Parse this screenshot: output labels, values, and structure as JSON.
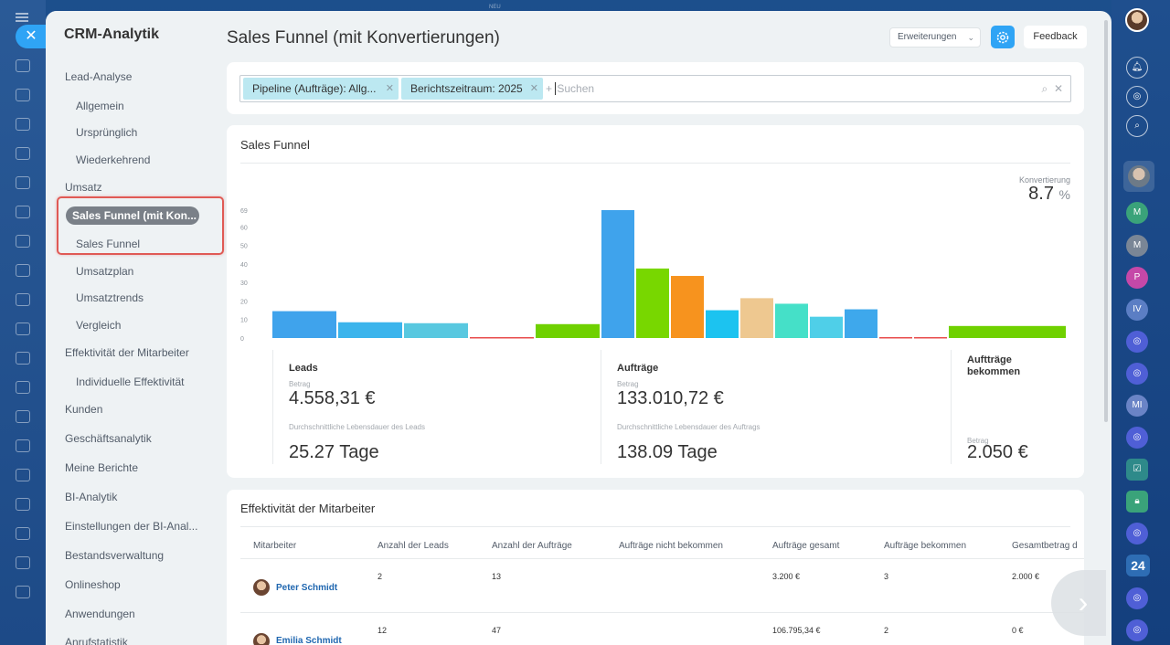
{
  "window": {
    "tag": "NEU"
  },
  "sidebar": {
    "title": "CRM-Analytik",
    "items": [
      {
        "label": "Lead-Analyse",
        "level": 0
      },
      {
        "label": "Allgemein",
        "level": 1
      },
      {
        "label": "Ursprünglich",
        "level": 1
      },
      {
        "label": "Wiederkehrend",
        "level": 1
      },
      {
        "label": "Umsatz",
        "level": 0
      },
      {
        "label": "Sales Funnel (mit Kon...",
        "level": 1,
        "active": true
      },
      {
        "label": "Sales Funnel",
        "level": 1
      },
      {
        "label": "Umsatzplan",
        "level": 1
      },
      {
        "label": "Umsatztrends",
        "level": 1
      },
      {
        "label": "Vergleich",
        "level": 1
      },
      {
        "label": "Effektivität der Mitarbeiter",
        "level": 0
      },
      {
        "label": "Individuelle Effektivität",
        "level": 1
      },
      {
        "label": "Kunden",
        "level": 0
      },
      {
        "label": "Geschäftsanalytik",
        "level": 0
      },
      {
        "label": "Meine Berichte",
        "level": 0
      },
      {
        "label": "BI-Analytik",
        "level": 0
      },
      {
        "label": "Einstellungen der BI-Anal...",
        "level": 0
      },
      {
        "label": "Bestandsverwaltung",
        "level": 0
      },
      {
        "label": "Onlineshop",
        "level": 0
      },
      {
        "label": "Anwendungen",
        "level": 0
      },
      {
        "label": "Anrufstatistik",
        "level": 0
      }
    ]
  },
  "header": {
    "title": "Sales Funnel (mit Konvertierungen)",
    "extensions_label": "Erweiterungen",
    "feedback_label": "Feedback"
  },
  "filter": {
    "chips": [
      "Pipeline (Aufträge): Allg...",
      "Berichtszeitraum: 2025"
    ],
    "add_symbol": "+",
    "placeholder": "Suchen"
  },
  "funnel": {
    "title": "Sales Funnel",
    "conversion_label": "Konvertierung",
    "conversion_value": "8.7",
    "conversion_unit": "%",
    "stats": {
      "leads": {
        "heading": "Leads",
        "amount_label": "Betrag",
        "amount": "4.558,31 €",
        "lifetime_label": "Durchschnittliche Lebensdauer des Leads",
        "lifetime": "25.27 Tage"
      },
      "deals": {
        "heading": "Aufträge",
        "amount_label": "Betrag",
        "amount": "133.010,72 €",
        "lifetime_label": "Durchschnittliche Lebensdauer des Auftrags",
        "lifetime": "138.09 Tage"
      },
      "won": {
        "heading": "Auftträge bekommen",
        "amount_label": "Betrag",
        "amount": "2.050 €"
      }
    }
  },
  "chart_data": {
    "type": "bar",
    "y_ticks": [
      "0",
      "10",
      "20",
      "30",
      "40",
      "50",
      "60",
      "69"
    ],
    "ylim": [
      0,
      69
    ],
    "grid": false,
    "values": [
      14.5,
      8.5,
      8,
      0.5,
      7.5,
      69,
      37.5,
      33.5,
      15,
      21.5,
      18.5,
      11.5,
      15.5,
      0.5,
      0.5,
      6.5
    ],
    "colors": [
      "#3fa3ec",
      "#3bb4ec",
      "#58c8e0",
      "#e84b4b",
      "#6fd100",
      "#3fa3ec",
      "#78d700",
      "#f7931e",
      "#1cc3f0",
      "#eec890",
      "#45e0c8",
      "#4fcfe8",
      "#3ea8ec",
      "#e84b4b",
      "#e84b4b",
      "#6fd100"
    ]
  },
  "effectiveness": {
    "title": "Effektivität der Mitarbeiter",
    "columns": [
      "Mitarbeiter",
      "Anzahl der Leads",
      "Anzahl der Aufträge",
      "Aufträge nicht bekommen",
      "Aufträge gesamt",
      "Aufträge bekommen",
      "Gesamtbetrag d"
    ],
    "rows": [
      {
        "name": "Peter Schmidt",
        "leads": "2",
        "deals": "13",
        "lost": "",
        "total": "3.200 €",
        "won": "3",
        "sum": "2.000 €"
      },
      {
        "name": "Emilia Schmidt",
        "leads": "12",
        "deals": "47",
        "lost": "",
        "total": "106.795,34 €",
        "won": "2",
        "sum": "0 €"
      }
    ]
  },
  "right_rail": {
    "badge": "24"
  }
}
